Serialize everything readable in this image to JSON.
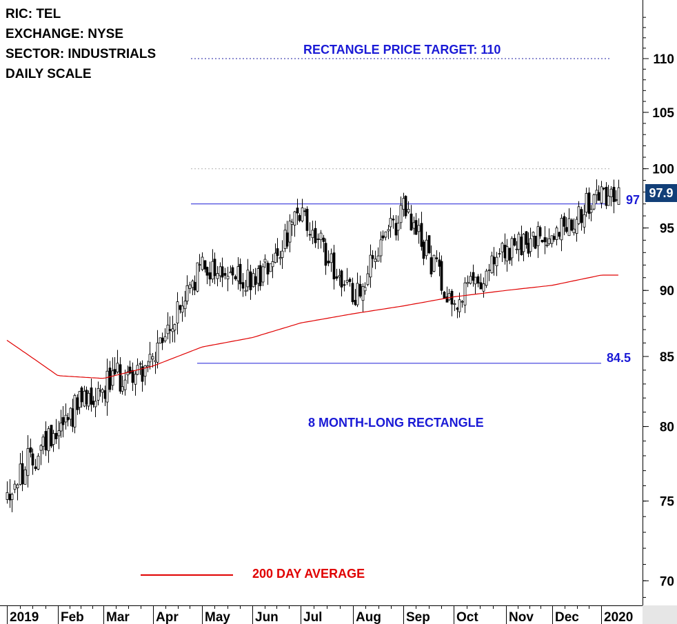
{
  "header": {
    "ric": "RIC: TEL",
    "exchange": "EXCHANGE: NYSE",
    "sector": "SECTOR: INDUSTRIALS",
    "scale": "DAILY SCALE"
  },
  "annotations": {
    "target_label": "RECTANGLE PRICE TARGET: 110",
    "rectangle_label": "8 MONTH-LONG RECTANGLE",
    "ma_legend": "200 DAY AVERAGE",
    "resistance_label": "97",
    "support_label": "84.5",
    "last_price": "97.9"
  },
  "colors": {
    "price": "#000000",
    "moving_average": "#e00000",
    "levels": "#1a1ad6",
    "last_price_bg": "#123f78",
    "axis_panel": "#e6e6e6"
  },
  "chart_data": {
    "type": "candlestick",
    "title": "",
    "y_scale": "log",
    "ylim": [
      68.5,
      115
    ],
    "y_ticks": [
      70,
      75,
      80,
      85,
      90,
      95,
      100,
      105,
      110
    ],
    "x_ticks": [
      "2019",
      "Feb",
      "Mar",
      "Apr",
      "May",
      "Jun",
      "Jul",
      "Aug",
      "Sep",
      "Oct",
      "Nov",
      "Dec",
      "2020"
    ],
    "grid": false,
    "last_price": 97.9,
    "levels": {
      "resistance": 97,
      "support": 84.5,
      "price_target": 110,
      "reference_dotted": 100
    },
    "price_path": [
      [
        "2019",
        75.5
      ],
      [
        "Feb",
        80.2
      ],
      [
        "Mar",
        83.0
      ],
      [
        "Apr",
        84.5
      ],
      [
        "May",
        92.0
      ],
      [
        "Jun",
        90.5
      ],
      [
        "Jul",
        96.0
      ],
      [
        "Aug",
        89.5
      ],
      [
        "Sep",
        96.5
      ],
      [
        "Oct",
        89.0
      ],
      [
        "Nov",
        93.0
      ],
      [
        "Dec",
        94.5
      ],
      [
        "2020",
        97.9
      ]
    ],
    "ma200_path": [
      [
        "2019",
        86.2
      ],
      [
        "Feb",
        83.6
      ],
      [
        "Mar",
        83.4
      ],
      [
        "Apr",
        84.3
      ],
      [
        "May",
        85.7
      ],
      [
        "Jun",
        86.4
      ],
      [
        "Jul",
        87.5
      ],
      [
        "Aug",
        88.2
      ],
      [
        "Sep",
        88.8
      ],
      [
        "Oct",
        89.5
      ],
      [
        "Nov",
        90.0
      ],
      [
        "Dec",
        90.4
      ],
      [
        "2020",
        91.2
      ]
    ]
  }
}
